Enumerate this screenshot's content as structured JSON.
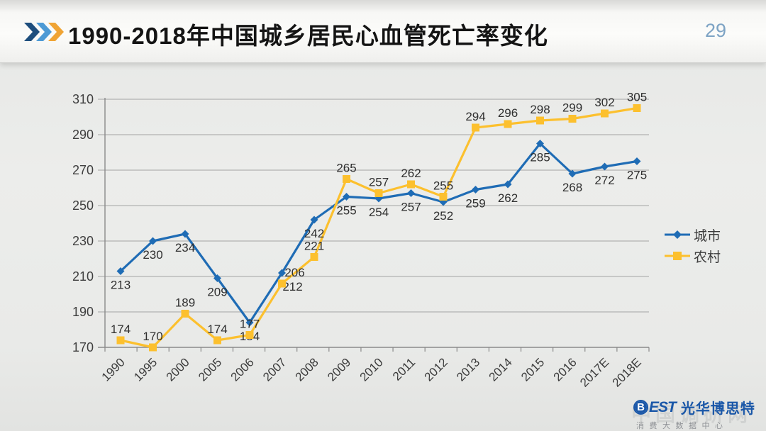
{
  "header": {
    "title": "1990-2018年中国城乡居民心血管死亡率变化",
    "page_number": "29",
    "chevron_colors": [
      "#1e4e7d",
      "#4d9ad5",
      "#f0a434"
    ]
  },
  "legend": {
    "position": "right",
    "items": [
      {
        "label": "城市",
        "color": "#1f6cb5",
        "marker": "diamond"
      },
      {
        "label": "农村",
        "color": "#fcc02e",
        "marker": "square"
      }
    ]
  },
  "footer": {
    "logo_mark": "B",
    "logo_text": "EST",
    "brand": "光华博思特",
    "subtitle": "消费大数据中心",
    "watermark": "中国调研网"
  },
  "chart_data": {
    "type": "line",
    "title": "1990-2018年中国城乡居民心血管死亡率变化",
    "xlabel": "",
    "ylabel": "",
    "ylim": [
      170,
      310
    ],
    "ytick_step": 20,
    "grid": true,
    "legend_position": "right",
    "categories": [
      "1990",
      "1995",
      "2000",
      "2005",
      "2006",
      "2007",
      "2008",
      "2009",
      "2010",
      "2011",
      "2012",
      "2013",
      "2014",
      "2015",
      "2016",
      "2017E",
      "2018E"
    ],
    "series": [
      {
        "name": "城市",
        "color": "#1f6cb5",
        "marker": "diamond",
        "label_position": "below",
        "values": [
          213,
          230,
          234,
          209,
          184,
          212,
          242,
          255,
          254,
          257,
          252,
          259,
          262,
          285,
          268,
          272,
          275
        ]
      },
      {
        "name": "农村",
        "color": "#fcc02e",
        "marker": "square",
        "label_position": "above",
        "values": [
          174,
          170,
          189,
          174,
          177,
          206,
          221,
          265,
          257,
          262,
          255,
          294,
          296,
          298,
          299,
          302,
          305
        ]
      }
    ]
  }
}
